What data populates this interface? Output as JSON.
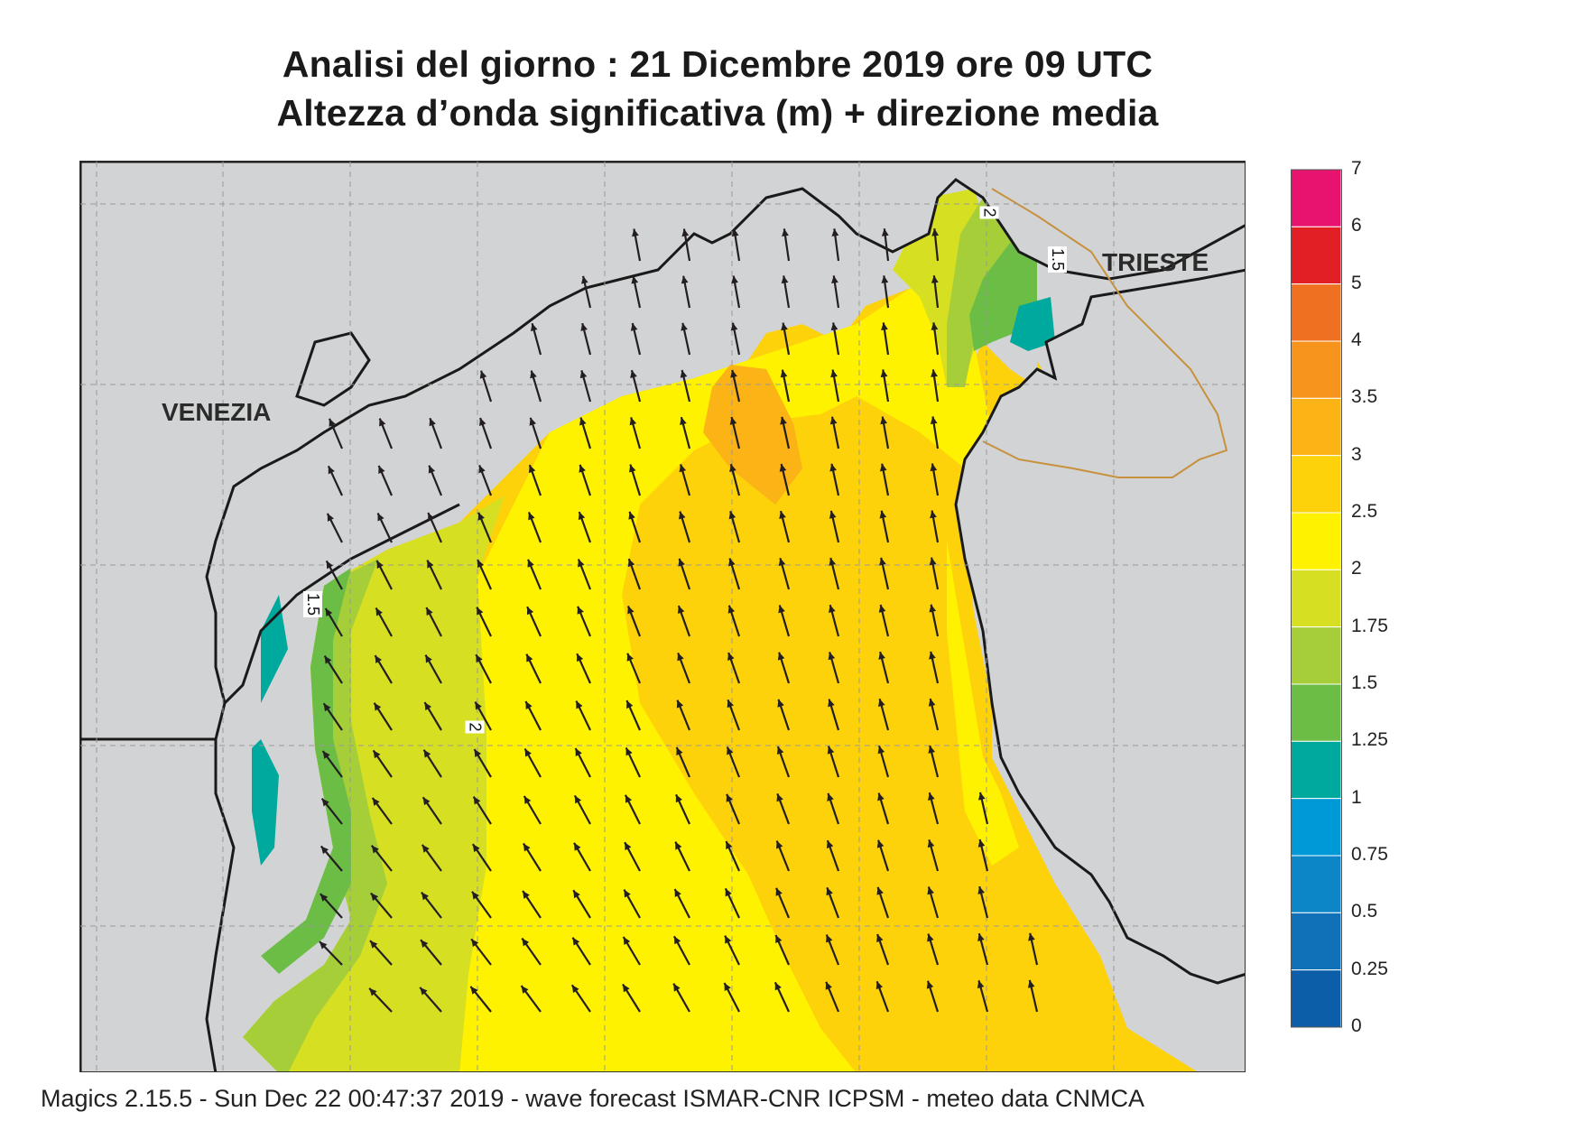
{
  "title_line1": "Analisi del giorno :  21 Dicembre  2019   ore 09 UTC",
  "title_line2": "Altezza d’onda significativa (m) + direzione media",
  "places": {
    "venezia": "VENEZIA",
    "trieste": "TRIESTE"
  },
  "contour_labels": [
    "2",
    "1.5",
    "2",
    "1.5"
  ],
  "legend": {
    "ticks": [
      "7",
      "6",
      "5",
      "4",
      "3.5",
      "3",
      "2.5",
      "2",
      "1.75",
      "1.5",
      "1.25",
      "1",
      "0.75",
      "0.5",
      "0.25",
      "0"
    ],
    "colors": [
      "#e8136f",
      "#e31f26",
      "#f07022",
      "#f7941d",
      "#fbb316",
      "#fdd20b",
      "#fff200",
      "#d7df23",
      "#a6ce39",
      "#6cbd45",
      "#00a99d",
      "#0099d8",
      "#0d86c8",
      "#1171b8",
      "#0d5ea8"
    ]
  },
  "colors": {
    "land": "#d1d3d4",
    "grid": "#999999",
    "coast": "#1a1a1a",
    "border": "#c7913d",
    "arrow": "#231f20"
  },
  "footer": "Magics 2.15.5 - Sun Dec 22 00:47:37 2019 - wave forecast  ISMAR-CNR  ICPSM - meteo data    CNMCA"
}
